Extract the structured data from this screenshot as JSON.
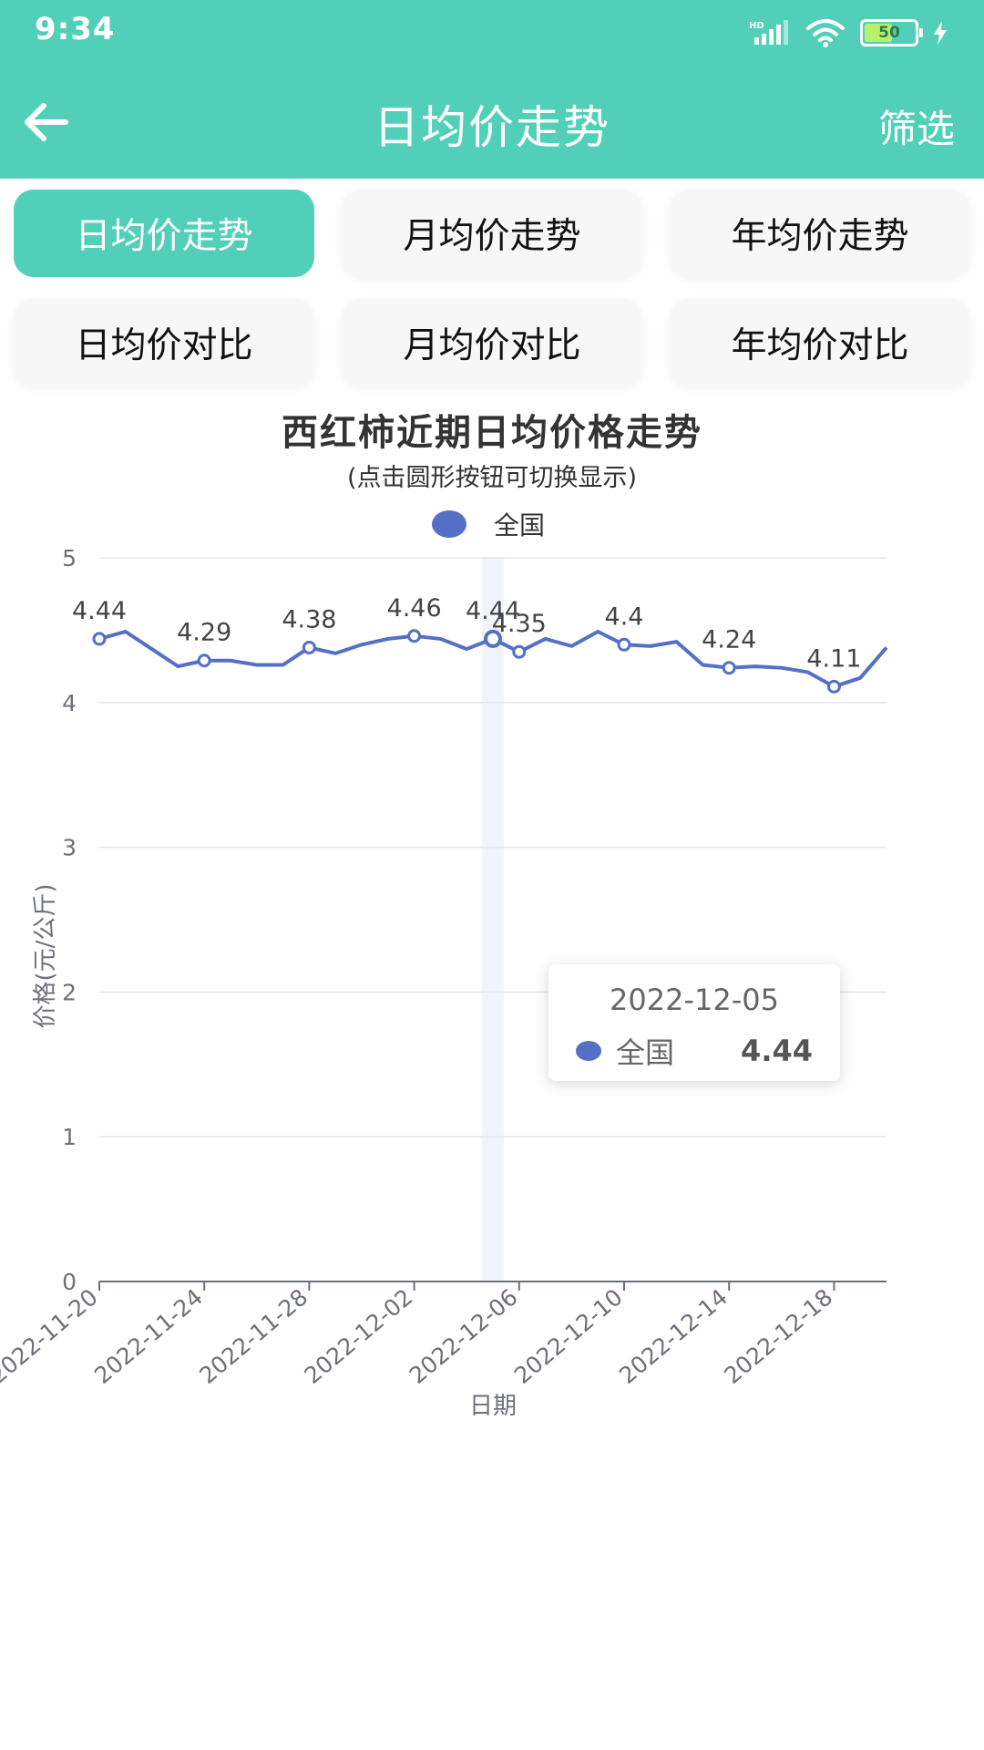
{
  "status_bar": {
    "time": "9:34",
    "battery": "50"
  },
  "app_bar": {
    "title": "日均价走势",
    "filter_label": "筛选"
  },
  "tabs": [
    {
      "label": "日均价走势",
      "active": true
    },
    {
      "label": "月均价走势",
      "active": false
    },
    {
      "label": "年均价走势",
      "active": false
    },
    {
      "label": "日均价对比",
      "active": false
    },
    {
      "label": "月均价对比",
      "active": false
    },
    {
      "label": "年均价对比",
      "active": false
    }
  ],
  "chart_data": {
    "type": "line",
    "title": "西红柿近期日均价格走势",
    "subtitle": "(点击圆形按钮可切换显示)",
    "xlabel": "日期",
    "ylabel": "价格(元/公斤)",
    "ylim": [
      0,
      5
    ],
    "yticks": [
      0,
      1,
      2,
      3,
      4,
      5
    ],
    "grid": true,
    "legend_position": "top-center",
    "color": "#5470c6",
    "x_tick_labels": [
      "2022-11-20",
      "2022-11-24",
      "2022-11-28",
      "2022-12-02",
      "2022-12-06",
      "2022-12-10",
      "2022-12-14",
      "2022-12-18"
    ],
    "x": [
      "2022-11-20",
      "2022-11-21",
      "2022-11-22",
      "2022-11-23",
      "2022-11-24",
      "2022-11-25",
      "2022-11-26",
      "2022-11-27",
      "2022-11-28",
      "2022-11-29",
      "2022-11-30",
      "2022-12-01",
      "2022-12-02",
      "2022-12-03",
      "2022-12-04",
      "2022-12-05",
      "2022-12-06",
      "2022-12-07",
      "2022-12-08",
      "2022-12-09",
      "2022-12-10",
      "2022-12-11",
      "2022-12-12",
      "2022-12-13",
      "2022-12-14",
      "2022-12-15",
      "2022-12-16",
      "2022-12-17",
      "2022-12-18",
      "2022-12-19",
      "2022-12-20"
    ],
    "series": [
      {
        "name": "全国",
        "values": [
          4.44,
          4.49,
          4.37,
          4.25,
          4.29,
          4.29,
          4.26,
          4.26,
          4.38,
          4.34,
          4.4,
          4.44,
          4.46,
          4.44,
          4.37,
          4.44,
          4.35,
          4.44,
          4.39,
          4.49,
          4.4,
          4.39,
          4.42,
          4.26,
          4.24,
          4.25,
          4.24,
          4.21,
          4.11,
          4.17,
          4.38
        ]
      }
    ],
    "data_labels": [
      {
        "date": "2022-11-20",
        "text": "4.44"
      },
      {
        "date": "2022-11-24",
        "text": "4.29"
      },
      {
        "date": "2022-11-28",
        "text": "4.38"
      },
      {
        "date": "2022-12-02",
        "text": "4.46"
      },
      {
        "date": "2022-12-05",
        "text": "4.44"
      },
      {
        "date": "2022-12-06",
        "text": "4.35"
      },
      {
        "date": "2022-12-10",
        "text": "4.4"
      },
      {
        "date": "2022-12-14",
        "text": "4.24"
      },
      {
        "date": "2022-12-18",
        "text": "4.11"
      }
    ],
    "tooltip": {
      "date": "2022-12-05",
      "series": "全国",
      "value": "4.44"
    }
  }
}
